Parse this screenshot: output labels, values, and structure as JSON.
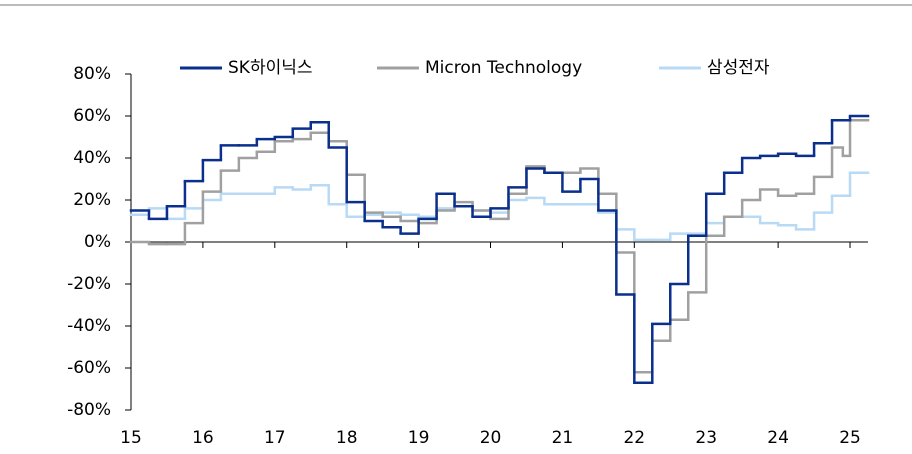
{
  "chart_data": {
    "type": "step",
    "xlim": [
      15,
      25.25
    ],
    "xticks": [
      15,
      16,
      17,
      18,
      19,
      20,
      21,
      22,
      23,
      24,
      25
    ],
    "ylim": [
      -80,
      80
    ],
    "yticks": [
      {
        "value": 80,
        "label": "80%"
      },
      {
        "value": 60,
        "label": "60%"
      },
      {
        "value": 40,
        "label": "40%"
      },
      {
        "value": 20,
        "label": "20%"
      },
      {
        "value": 0,
        "label": "0%"
      },
      {
        "value": -20,
        "label": "-20%"
      },
      {
        "value": -40,
        "label": "-40%"
      },
      {
        "value": -60,
        "label": "-60%"
      },
      {
        "value": -80,
        "label": "-80%"
      }
    ],
    "series": [
      {
        "name": "SK하이닉스",
        "color": "#0a2f8c",
        "x": [
          15,
          15.25,
          15.5,
          15.75,
          16,
          16.25,
          16.5,
          16.75,
          17,
          17.25,
          17.5,
          17.75,
          18,
          18.25,
          18.5,
          18.75,
          19,
          19.25,
          19.5,
          19.75,
          20,
          20.25,
          20.5,
          20.75,
          21,
          21.25,
          21.5,
          21.75,
          22,
          22.25,
          22.5,
          22.75,
          23,
          23.25,
          23.5,
          23.75,
          24,
          24.25,
          24.5,
          24.75,
          25
        ],
        "values": [
          15,
          11,
          17,
          29,
          39,
          46,
          46,
          49,
          50,
          54,
          57,
          45,
          19,
          10,
          7,
          4,
          11,
          23,
          17,
          12,
          16,
          26,
          35,
          33,
          24,
          30,
          15,
          -25,
          -67,
          -39,
          -20,
          3,
          23,
          33,
          40,
          41,
          42,
          41,
          47,
          58,
          60
        ]
      },
      {
        "name": "Micron Technology",
        "color": "#a0a0a0",
        "x": [
          15,
          15.25,
          15.5,
          15.75,
          16,
          16.25,
          16.5,
          16.75,
          17,
          17.25,
          17.5,
          17.75,
          18,
          18.25,
          18.5,
          18.75,
          19,
          19.25,
          19.5,
          19.75,
          20,
          20.25,
          20.5,
          20.75,
          21,
          21.25,
          21.5,
          21.75,
          22,
          22.25,
          22.5,
          22.75,
          23,
          23.25,
          23.5,
          23.75,
          24,
          24.25,
          24.5,
          24.75,
          24.9,
          25
        ],
        "values": [
          0,
          -1,
          -1,
          9,
          24,
          34,
          40,
          43,
          48,
          49,
          52,
          48,
          32,
          14,
          12,
          10,
          9,
          15,
          19,
          15,
          11,
          23,
          36,
          33,
          33,
          35,
          23,
          -5,
          -62,
          -47,
          -37,
          -24,
          3,
          12,
          20,
          25,
          22,
          23,
          31,
          45,
          41,
          58
        ]
      },
      {
        "name": "삼성전자",
        "color": "#b8daf5",
        "x": [
          15,
          15.25,
          15.5,
          15.75,
          16,
          16.25,
          16.5,
          16.75,
          17,
          17.25,
          17.5,
          17.75,
          18,
          18.25,
          18.5,
          18.75,
          19,
          19.25,
          19.5,
          19.75,
          20,
          20.25,
          20.5,
          20.75,
          21,
          21.25,
          21.5,
          21.75,
          22,
          22.25,
          22.5,
          22.75,
          23,
          23.25,
          23.5,
          23.75,
          24,
          24.25,
          24.5,
          24.75,
          25
        ],
        "values": [
          13,
          16,
          11,
          16,
          20,
          23,
          23,
          23,
          26,
          25,
          27,
          18,
          12,
          13,
          14,
          13,
          12,
          16,
          17,
          15,
          14,
          20,
          21,
          18,
          18,
          18,
          14,
          6,
          1,
          1,
          4,
          4,
          9,
          12,
          12,
          9,
          8,
          6,
          14,
          22,
          33
        ]
      }
    ]
  }
}
